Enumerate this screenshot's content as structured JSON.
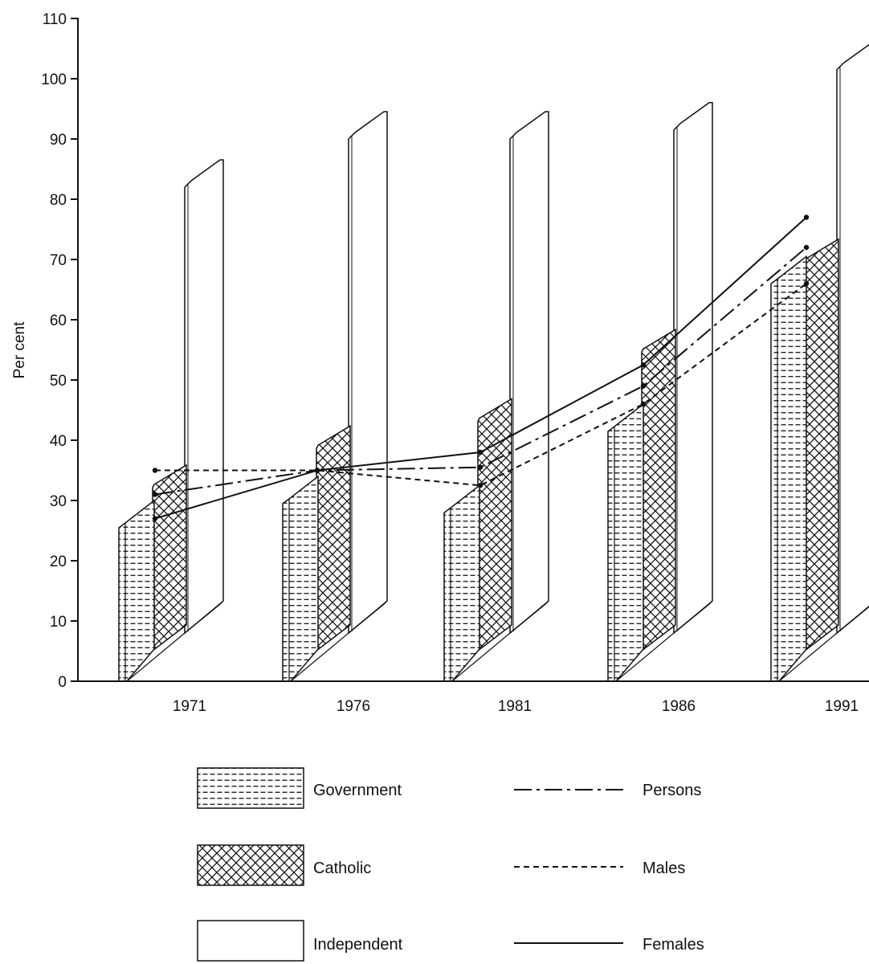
{
  "chart_data": {
    "type": "bar",
    "title": "",
    "xlabel": "",
    "ylabel": "Per cent",
    "ylim": [
      0,
      110
    ],
    "yticks": [
      0,
      10,
      20,
      30,
      40,
      50,
      60,
      70,
      80,
      90,
      100,
      110
    ],
    "categories": [
      "1971",
      "1976",
      "1981",
      "1986",
      "1991"
    ],
    "stacking": "cumulative",
    "bar_series": [
      {
        "name": "Government",
        "pattern": "horizontal-dashes",
        "values": [
          26,
          30,
          28.5,
          42,
          66.5
        ]
      },
      {
        "name": "Catholic",
        "pattern": "crosshatch",
        "values": [
          34,
          40.5,
          45,
          56.5,
          71.5
        ]
      },
      {
        "name": "Independent",
        "pattern": "blank",
        "values": [
          82,
          90,
          90,
          91.5,
          101.5
        ]
      }
    ],
    "line_series": [
      {
        "name": "Persons",
        "style": "dash-dot",
        "values": [
          31,
          35,
          35.5,
          49,
          72
        ]
      },
      {
        "name": "Males",
        "style": "dashed",
        "values": [
          35,
          35,
          32.5,
          46,
          66
        ]
      },
      {
        "name": "Females",
        "style": "solid",
        "values": [
          27,
          35,
          38,
          52.5,
          77
        ]
      }
    ],
    "legend": {
      "placement": "bottom",
      "bars": [
        "Government",
        "Catholic",
        "Independent"
      ],
      "lines": [
        "Persons",
        "Males",
        "Females"
      ]
    },
    "grid": false,
    "colors": {
      "ink": "#111111",
      "background": "#ffffff"
    }
  }
}
